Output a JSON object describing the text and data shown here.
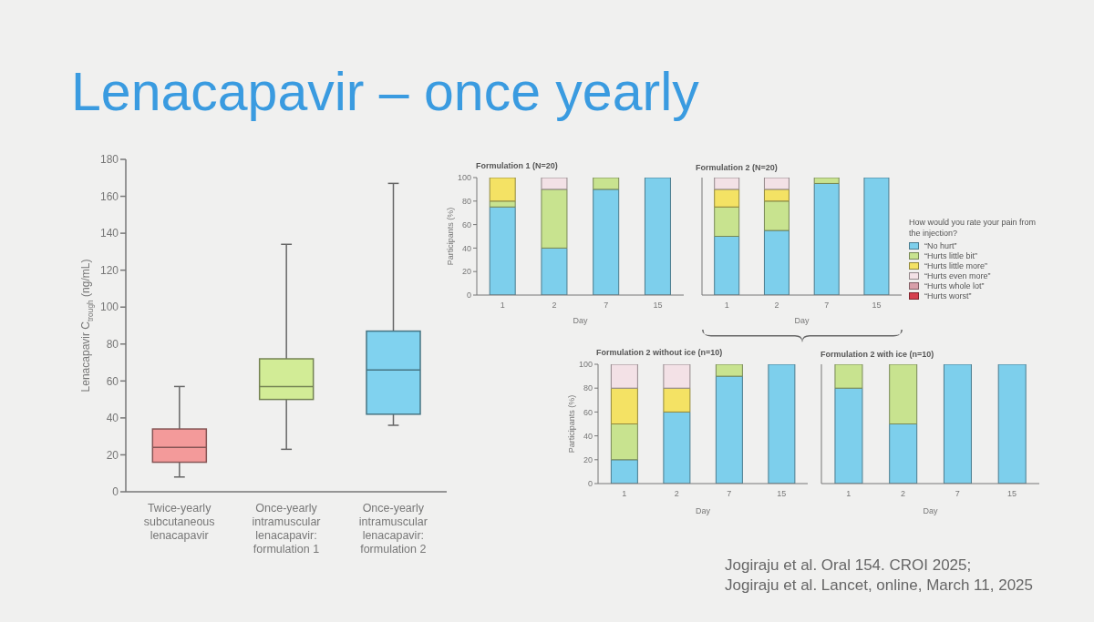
{
  "chart_data": [
    {
      "type": "box",
      "title": "Lenacapavir – once yearly",
      "ylabel": "Lenacapavir C$_{trough}$ (ng/mL)",
      "categories": [
        "Twice-yearly subcutaneous lenacapavir",
        "Once-yearly intramuscular lenacapavir: formulation 1",
        "Once-yearly intramuscular lenacapavir: formulation 2"
      ],
      "boxes": [
        {
          "low": 8,
          "q1": 16,
          "median": 24,
          "q3": 34,
          "high": 57
        },
        {
          "low": 23,
          "q1": 50,
          "median": 57,
          "q3": 72,
          "high": 134
        },
        {
          "low": 36,
          "q1": 42,
          "median": 66,
          "q3": 87,
          "high": 167
        }
      ],
      "colors": [
        "#f39a9a",
        "#d2ec96",
        "#80d2ef"
      ],
      "ylim": [
        0,
        180
      ],
      "yticks": [
        0,
        20,
        40,
        60,
        80,
        100,
        120,
        140,
        160,
        180
      ]
    },
    {
      "type": "bar",
      "title": "Formulation 1 (N=20)",
      "xlabel": "Day",
      "ylabel": "Participants (%)",
      "categories": [
        "1",
        "2",
        "7",
        "15"
      ],
      "stacked": true,
      "series": [
        {
          "color": "#7dcfec",
          "values": [
            75,
            40,
            90,
            100
          ]
        },
        {
          "color": "#c8e38f",
          "values": [
            5,
            50,
            10,
            0
          ]
        },
        {
          "color": "#f4e264",
          "values": [
            20,
            0,
            0,
            0
          ]
        },
        {
          "color": "#f3e1e6",
          "values": [
            0,
            10,
            0,
            0
          ]
        }
      ],
      "ylim": [
        0,
        100
      ],
      "yticks": [
        0,
        20,
        40,
        60,
        80,
        100
      ]
    },
    {
      "type": "bar",
      "title": "Formulation 2 (N=20)",
      "xlabel": "Day",
      "categories": [
        "1",
        "2",
        "7",
        "15"
      ],
      "stacked": true,
      "legend": "right",
      "legend_title": "How would you rate your pain from the injection?",
      "tick_labels": "x",
      "series": [
        {
          "name": "“No hurt”",
          "color": "#7dcfec",
          "values": [
            50,
            55,
            95,
            100
          ]
        },
        {
          "name": "“Hurts little bit”",
          "color": "#c8e38f",
          "values": [
            25,
            25,
            5,
            0
          ]
        },
        {
          "name": "“Hurts little more”",
          "color": "#f4e264",
          "values": [
            15,
            10,
            0,
            0
          ]
        },
        {
          "name": "“Hurts even more”",
          "color": "#f3e1e6",
          "values": [
            10,
            10,
            0,
            0
          ]
        },
        {
          "name": "“Hurts whole lot”",
          "color": "#d8a0aa",
          "values": [
            0,
            0,
            0,
            0
          ]
        },
        {
          "name": "“Hurts worst”",
          "color": "#d6404e",
          "values": [
            0,
            0,
            0,
            0
          ]
        }
      ],
      "ylim": [
        0,
        100
      ],
      "yticks": [
        0,
        20,
        40,
        60,
        80,
        100
      ]
    },
    {
      "type": "bar",
      "title": "Formulation 2 without ice (n=10)",
      "xlabel": "Day",
      "ylabel": "Participants (%)",
      "categories": [
        "1",
        "2",
        "7",
        "15"
      ],
      "stacked": true,
      "series": [
        {
          "color": "#7dcfec",
          "values": [
            20,
            60,
            90,
            100
          ]
        },
        {
          "color": "#c8e38f",
          "values": [
            30,
            0,
            10,
            0
          ]
        },
        {
          "color": "#f4e264",
          "values": [
            30,
            20,
            0,
            0
          ]
        },
        {
          "color": "#f3e1e6",
          "values": [
            20,
            20,
            0,
            0
          ]
        }
      ],
      "ylim": [
        0,
        100
      ],
      "yticks": [
        0,
        20,
        40,
        60,
        80,
        100
      ]
    },
    {
      "type": "bar",
      "title": "Formulation 2 with ice (n=10)",
      "xlabel": "Day",
      "categories": [
        "1",
        "2",
        "7",
        "15"
      ],
      "stacked": true,
      "tick_labels": "x",
      "series": [
        {
          "color": "#7dcfec",
          "values": [
            80,
            50,
            100,
            100
          ]
        },
        {
          "color": "#c8e38f",
          "values": [
            20,
            50,
            0,
            0
          ]
        }
      ],
      "ylim": [
        0,
        100
      ],
      "yticks": [
        0,
        20,
        40,
        60,
        80,
        100
      ],
      "annotations": [
        "Jogiraju et al. Oral 154. CROI 2025;",
        "Jogiraju et al. Lancet, online, March 11, 2025"
      ]
    }
  ]
}
